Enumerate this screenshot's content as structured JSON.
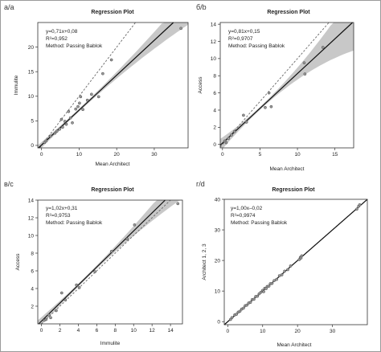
{
  "figure": {
    "border_color": "#9a9a9a",
    "panels": [
      {
        "label": "a/a",
        "title": "Regression Plot",
        "equation": "y=0,71x+0,08",
        "r2": "R²=0,952",
        "method": "Method: Passing Bablok",
        "xlabel": "Mean Architect",
        "ylabel": "Immulite"
      },
      {
        "label": "б/b",
        "title": "Regression Plot",
        "equation": "y=0,81x+0,15",
        "r2": "R²=0,9707",
        "method": "Method: Passing Bablok",
        "xlabel": "Mean Architect",
        "ylabel": "Access"
      },
      {
        "label": "в/c",
        "title": "Regression Plot",
        "equation": "y=1,02x+0,31",
        "r2": "R²=0,9753",
        "method": "Method: Passing Bablok",
        "xlabel": "Immulite",
        "ylabel": "Access"
      },
      {
        "label": "г/d",
        "title": "Regression Plot",
        "equation": "y=1,00x–0,02",
        "r2": "R²=0,9974",
        "method": "Method: Passing Bablok",
        "xlabel": "Mean Architect",
        "ylabel": "Architect 1, 2, 3"
      }
    ]
  },
  "chart_data": [
    {
      "type": "scatter",
      "title": "Regression Plot",
      "xlabel": "Mean Architect",
      "ylabel": "Immulite",
      "xlim": [
        -1,
        39
      ],
      "ylim": [
        -0.5,
        25
      ],
      "xticks": [
        0,
        10,
        20,
        30
      ],
      "yticks": [
        0,
        5,
        10,
        15,
        20
      ],
      "regression": {
        "slope": 0.71,
        "intercept": 0.08
      },
      "identity_line": true,
      "confidence_band": true,
      "points": [
        [
          0.8,
          0.6
        ],
        [
          1.2,
          0.9
        ],
        [
          2.4,
          1.9
        ],
        [
          3.6,
          2.5
        ],
        [
          4.1,
          2.9
        ],
        [
          4.8,
          3.3
        ],
        [
          5.3,
          5.3
        ],
        [
          5.6,
          3.7
        ],
        [
          6.2,
          4.9
        ],
        [
          6.6,
          4.3
        ],
        [
          7.2,
          6.9
        ],
        [
          7.7,
          5.6
        ],
        [
          8.2,
          4.6
        ],
        [
          9.1,
          7.4
        ],
        [
          9.7,
          7.9
        ],
        [
          10.1,
          8.6
        ],
        [
          10.4,
          9.9
        ],
        [
          11.0,
          7.3
        ],
        [
          12.2,
          9.2
        ],
        [
          13.3,
          10.4
        ],
        [
          15.2,
          9.9
        ],
        [
          16.3,
          14.6
        ],
        [
          18.6,
          17.4
        ],
        [
          37.1,
          23.8
        ]
      ],
      "colors": {
        "regression": "#111111",
        "identity": "#666666",
        "band": "#c8c8c8",
        "points": "#444444"
      }
    },
    {
      "type": "scatter",
      "title": "Regression Plot",
      "xlabel": "Mean Architect",
      "ylabel": "Access",
      "xlim": [
        -0.3,
        17.5
      ],
      "ylim": [
        -0.4,
        14.2
      ],
      "xticks": [
        0,
        5,
        10,
        15
      ],
      "yticks": [
        0,
        2,
        4,
        6,
        8,
        10,
        12,
        14
      ],
      "regression": {
        "slope": 0.81,
        "intercept": 0.15
      },
      "identity_line": true,
      "confidence_band": true,
      "points": [
        [
          0.3,
          0.4
        ],
        [
          0.5,
          0.2
        ],
        [
          0.8,
          0.7
        ],
        [
          1.2,
          1.1
        ],
        [
          1.6,
          1.5
        ],
        [
          2.8,
          3.4
        ],
        [
          3.2,
          2.6
        ],
        [
          5.7,
          4.3
        ],
        [
          6.2,
          6.0
        ],
        [
          6.5,
          4.4
        ],
        [
          10.9,
          9.5
        ],
        [
          11.0,
          8.2
        ],
        [
          13.4,
          11.3
        ]
      ],
      "colors": {
        "regression": "#111111",
        "identity": "#666666",
        "band": "#c8c8c8",
        "points": "#444444"
      }
    },
    {
      "type": "scatter",
      "title": "Regression Plot",
      "xlabel": "Immulite",
      "ylabel": "Access",
      "xlim": [
        -0.4,
        15.3
      ],
      "ylim": [
        0,
        14
      ],
      "xticks": [
        0,
        2,
        4,
        6,
        8,
        10,
        12,
        14
      ],
      "yticks": [
        2,
        4,
        6,
        8,
        10,
        12,
        14
      ],
      "regression": {
        "slope": 1.02,
        "intercept": 0.31
      },
      "identity_line": true,
      "confidence_band": true,
      "points": [
        [
          0.3,
          0.4
        ],
        [
          0.5,
          0.5
        ],
        [
          0.8,
          1.0
        ],
        [
          1.0,
          0.7
        ],
        [
          1.6,
          1.5
        ],
        [
          2.2,
          3.5
        ],
        [
          2.6,
          2.7
        ],
        [
          3.8,
          4.4
        ],
        [
          4.1,
          4.1
        ],
        [
          5.8,
          5.9
        ],
        [
          7.6,
          8.2
        ],
        [
          9.3,
          9.6
        ],
        [
          10.1,
          11.2
        ],
        [
          14.8,
          13.6
        ]
      ],
      "colors": {
        "regression": "#111111",
        "identity": "#666666",
        "band": "#c8c8c8",
        "points": "#444444"
      }
    },
    {
      "type": "scatter",
      "title": "Regression Plot",
      "xlabel": "Mean Architect",
      "ylabel": "Architect 1, 2, 3",
      "xlim": [
        -1,
        40
      ],
      "ylim": [
        -1,
        40
      ],
      "xticks": [
        0,
        10,
        20,
        30
      ],
      "yticks": [
        0,
        10,
        20,
        30,
        40
      ],
      "regression": {
        "slope": 1.0,
        "intercept": -0.02
      },
      "identity_line": true,
      "confidence_band": false,
      "points": [
        [
          0.8,
          0.7
        ],
        [
          1.2,
          1.3
        ],
        [
          2.0,
          2.2
        ],
        [
          2.5,
          2.4
        ],
        [
          3.0,
          3.1
        ],
        [
          3.5,
          3.4
        ],
        [
          4.0,
          4.1
        ],
        [
          4.5,
          4.4
        ],
        [
          5.0,
          5.2
        ],
        [
          5.5,
          5.4
        ],
        [
          6.0,
          6.1
        ],
        [
          6.5,
          6.3
        ],
        [
          7.0,
          7.2
        ],
        [
          7.5,
          7.3
        ],
        [
          8.0,
          8.2
        ],
        [
          8.5,
          8.3
        ],
        [
          9.0,
          9.1
        ],
        [
          9.5,
          9.6
        ],
        [
          10.0,
          10.2
        ],
        [
          10.3,
          9.8
        ],
        [
          10.6,
          10.9
        ],
        [
          11.0,
          10.8
        ],
        [
          11.3,
          11.5
        ],
        [
          11.8,
          11.6
        ],
        [
          12.2,
          12.4
        ],
        [
          12.7,
          12.5
        ],
        [
          13.3,
          13.4
        ],
        [
          14.0,
          13.8
        ],
        [
          14.8,
          15.0
        ],
        [
          15.5,
          15.3
        ],
        [
          16.3,
          16.5
        ],
        [
          17.2,
          17.0
        ],
        [
          18.0,
          18.2
        ],
        [
          20.5,
          20.3
        ],
        [
          20.8,
          21.0
        ],
        [
          21.0,
          20.8
        ],
        [
          21.2,
          21.5
        ],
        [
          37.0,
          36.8
        ],
        [
          37.5,
          37.7
        ],
        [
          37.8,
          38.2
        ]
      ],
      "colors": {
        "regression": "#111111",
        "identity": "#666666",
        "band": "#c8c8c8",
        "points": "#444444"
      }
    }
  ]
}
